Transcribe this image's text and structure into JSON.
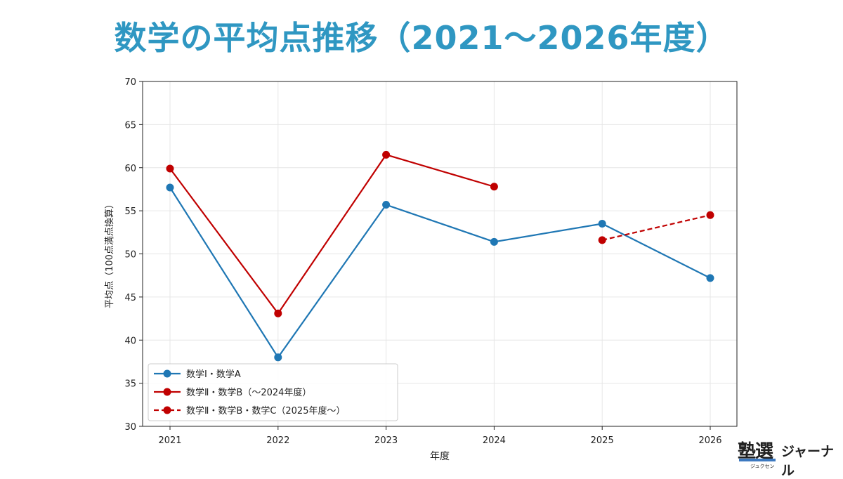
{
  "page": {
    "title": "数学の平均点推移（2021〜2026年度）"
  },
  "brand": {
    "name": "塾選",
    "ruby": "ジュクセン",
    "sub": "ジャーナル"
  },
  "chart_data": {
    "type": "line",
    "xlabel": "年度",
    "ylabel": "平均点（100点満点換算）",
    "x": [
      2021,
      2022,
      2023,
      2024,
      2025,
      2026
    ],
    "xticks": [
      "2021",
      "2022",
      "2023",
      "2024",
      "2025",
      "2026"
    ],
    "ylim": [
      30,
      70
    ],
    "yticks": [
      "30",
      "35",
      "40",
      "45",
      "50",
      "55",
      "60",
      "65",
      "70"
    ],
    "grid": true,
    "legend_position": "bottom-left",
    "series": [
      {
        "name": "数学Ⅰ・数学A",
        "color": "#1f77b4",
        "dashed": false,
        "x": [
          2021,
          2022,
          2023,
          2024,
          2025,
          2026
        ],
        "values": [
          57.7,
          38.0,
          55.7,
          51.4,
          53.5,
          47.2
        ]
      },
      {
        "name": "数学Ⅱ・数学B（〜2024年度）",
        "color": "#c00000",
        "dashed": false,
        "x": [
          2021,
          2022,
          2023,
          2024
        ],
        "values": [
          59.9,
          43.1,
          61.5,
          57.8
        ]
      },
      {
        "name": "数学Ⅱ・数学B・数学C（2025年度〜）",
        "color": "#c00000",
        "dashed": true,
        "x": [
          2025,
          2026
        ],
        "values": [
          51.6,
          54.5
        ]
      }
    ]
  }
}
